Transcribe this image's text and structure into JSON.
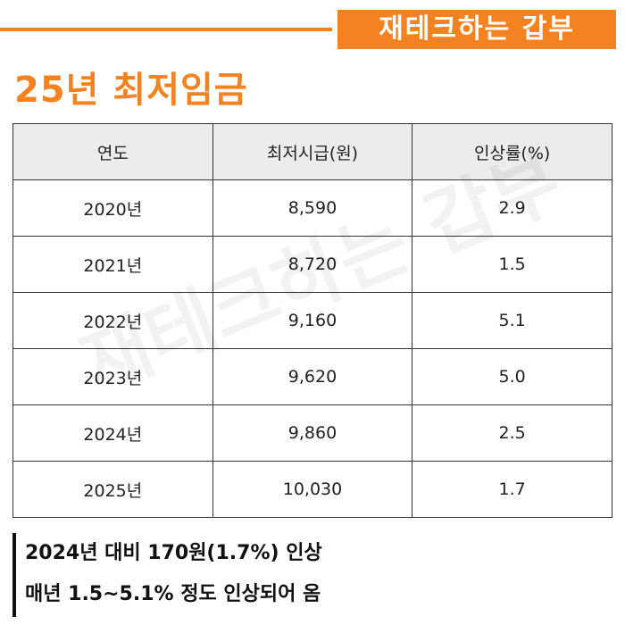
{
  "header": {
    "brand": "재테크하는 갑부",
    "title": "25년 최저임금"
  },
  "table": {
    "columns": [
      "연도",
      "최저시급(원)",
      "인상률(%)"
    ],
    "rows": [
      [
        "2020년",
        "8,590",
        "2.9"
      ],
      [
        "2021년",
        "8,720",
        "1.5"
      ],
      [
        "2022년",
        "9,160",
        "5.1"
      ],
      [
        "2023년",
        "9,620",
        "5.0"
      ],
      [
        "2024년",
        "9,860",
        "2.5"
      ],
      [
        "2025년",
        "10,030",
        "1.7"
      ]
    ]
  },
  "notes": [
    "2024년 대비 170원(1.7%) 인상",
    "매년 1.5~5.1% 정도 인상되어 옴"
  ]
}
